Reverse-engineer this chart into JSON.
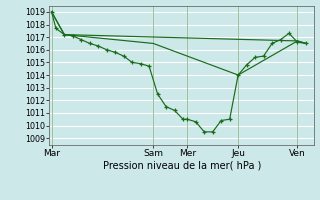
{
  "xlabel": "Pression niveau de la mer( hPa )",
  "bg_color": "#cce8e8",
  "grid_color": "#ffffff",
  "line_color": "#1a6b1a",
  "ylim": [
    1008.5,
    1019.5
  ],
  "yticks": [
    1009,
    1010,
    1011,
    1012,
    1013,
    1014,
    1015,
    1016,
    1017,
    1018,
    1019
  ],
  "day_labels": [
    "Mar",
    "Sam",
    "Mer",
    "Jeu",
    "Ven"
  ],
  "day_positions": [
    0,
    12,
    16,
    22,
    29
  ],
  "xlim": [
    -0.3,
    31
  ],
  "series1_x": [
    0,
    0.5,
    1.5,
    2.5,
    3.5,
    4.5,
    5.5,
    6.5,
    7.5,
    8.5,
    9.5,
    10.5,
    11.5,
    12.5,
    13.5,
    14.5,
    15.5,
    16,
    17,
    18,
    19,
    20,
    21,
    22,
    23,
    24,
    25,
    26,
    27,
    28,
    29,
    30
  ],
  "series1_y": [
    1019,
    1017.7,
    1017.2,
    1017.1,
    1016.8,
    1016.5,
    1016.3,
    1016.0,
    1015.8,
    1015.5,
    1015.0,
    1014.9,
    1014.7,
    1012.5,
    1011.5,
    1011.2,
    1010.5,
    1010.5,
    1010.3,
    1009.5,
    1009.5,
    1010.4,
    1010.5,
    1014.0,
    1014.8,
    1015.4,
    1015.5,
    1016.5,
    1016.8,
    1017.3,
    1016.6,
    1016.5
  ],
  "series2_x": [
    0,
    1.5,
    29,
    30
  ],
  "series2_y": [
    1019,
    1017.2,
    1016.7,
    1016.5
  ],
  "series3_x": [
    0,
    1.5,
    12,
    22,
    29,
    30
  ],
  "series3_y": [
    1019,
    1017.2,
    1016.5,
    1014.0,
    1016.7,
    1016.5
  ]
}
